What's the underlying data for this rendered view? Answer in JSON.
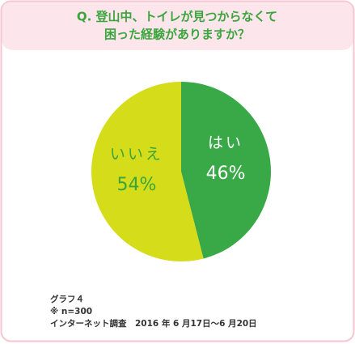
{
  "chart_data": {
    "type": "pie",
    "title": [
      "Q. 登山中、トイレが見つからなくて",
      "困った経験がありますか？"
    ],
    "categories": [
      "はい",
      "いいえ"
    ],
    "values": [
      46,
      54
    ],
    "value_labels": [
      "46%",
      "54%"
    ],
    "colors": [
      "#38a946",
      "#d5dc1a"
    ],
    "notes": [
      "グラフ４",
      "※ n=300",
      "インターネット調査　2016 年 6 月17日～6 月20日"
    ]
  }
}
